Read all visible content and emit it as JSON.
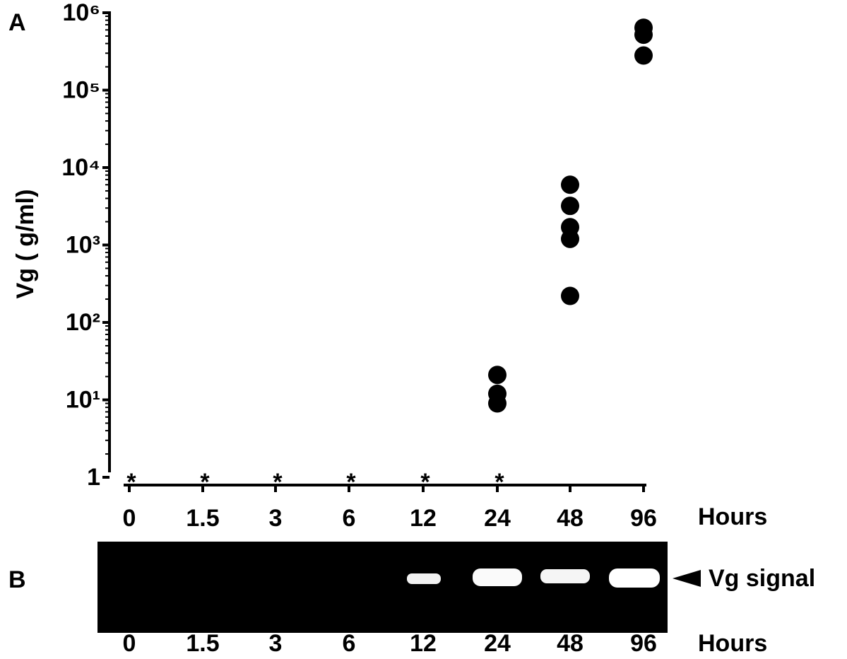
{
  "chart_data": {
    "type": "scatter",
    "panel_label": "A",
    "y_label": "Vg (   g/ml)",
    "x_label": "Hours",
    "categories": [
      "0",
      "1.5",
      "3",
      "6",
      "12",
      "24",
      "48",
      "96"
    ],
    "values": [
      [],
      [],
      [],
      [],
      [],
      [
        21,
        12,
        9
      ],
      [
        6000,
        3200,
        1700,
        1200,
        220
      ],
      [
        640000,
        520000,
        280000
      ]
    ],
    "color": "#000000",
    "log_scale": true,
    "grid": false,
    "ylim": [
      1,
      1000000
    ],
    "yticks": [
      1,
      {
        "value": 10,
        "label": "10¹"
      },
      {
        "value": 100,
        "label": "10²"
      },
      {
        "value": 1000,
        "label": "10³"
      },
      {
        "value": 10000,
        "label": "10⁴"
      },
      {
        "value": 100000,
        "label": "10⁵"
      },
      {
        "value": 1000000,
        "label": "10⁶"
      }
    ],
    "annotations": [
      {
        "text": "*",
        "category": "0"
      },
      {
        "text": "*",
        "category": "1.5"
      },
      {
        "text": "*",
        "category": "3"
      },
      {
        "text": "*",
        "category": "6"
      },
      {
        "text": "*",
        "category": "12"
      },
      {
        "text": "*",
        "category": "24"
      }
    ]
  },
  "gel": {
    "panel_label": "B",
    "lanes": [
      "0",
      "1.5",
      "3",
      "6",
      "12",
      "24",
      "48",
      "96"
    ],
    "x_label": "Hours",
    "band_label": "Vg signal"
  }
}
